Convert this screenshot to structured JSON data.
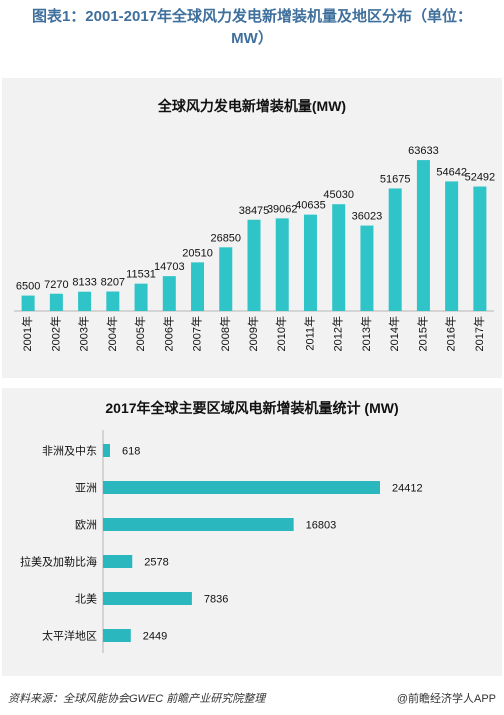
{
  "figure_title_line1": "图表1：2001-2017年全球风力发电新增装机量及地区分布（单位：",
  "figure_title_line2": "MW）",
  "chart_data": [
    {
      "type": "bar",
      "orientation": "vertical",
      "title": "全球风力发电新增装机量(MW)",
      "categories": [
        "2001年",
        "2002年",
        "2003年",
        "2004年",
        "2005年",
        "2006年",
        "2007年",
        "2008年",
        "2009年",
        "2010年",
        "2011年",
        "2012年",
        "2013年",
        "2014年",
        "2015年",
        "2016年",
        "2017年"
      ],
      "values": [
        6500,
        7270,
        8133,
        8207,
        11531,
        14703,
        20510,
        26850,
        38475,
        39062,
        40635,
        45030,
        36023,
        51675,
        63633,
        54642,
        52492
      ],
      "ylim": [
        0,
        70000
      ],
      "grid": false,
      "color": "#2ec4c8"
    },
    {
      "type": "bar",
      "orientation": "horizontal",
      "title": "2017年全球主要区域风电新增装机量统计 (MW)",
      "categories": [
        "非洲及中东",
        "亚洲",
        "欧洲",
        "拉美及加勒比海",
        "北美",
        "太平洋地区"
      ],
      "values": [
        618,
        24412,
        16803,
        2578,
        7836,
        2449
      ],
      "xlim": [
        0,
        26000
      ],
      "grid": false,
      "color": "#2ab7bd"
    }
  ],
  "footer": {
    "source": "资料来源：全球风能协会GWEC 前瞻产业研究院整理",
    "brand": "@前瞻经济学人APP"
  }
}
